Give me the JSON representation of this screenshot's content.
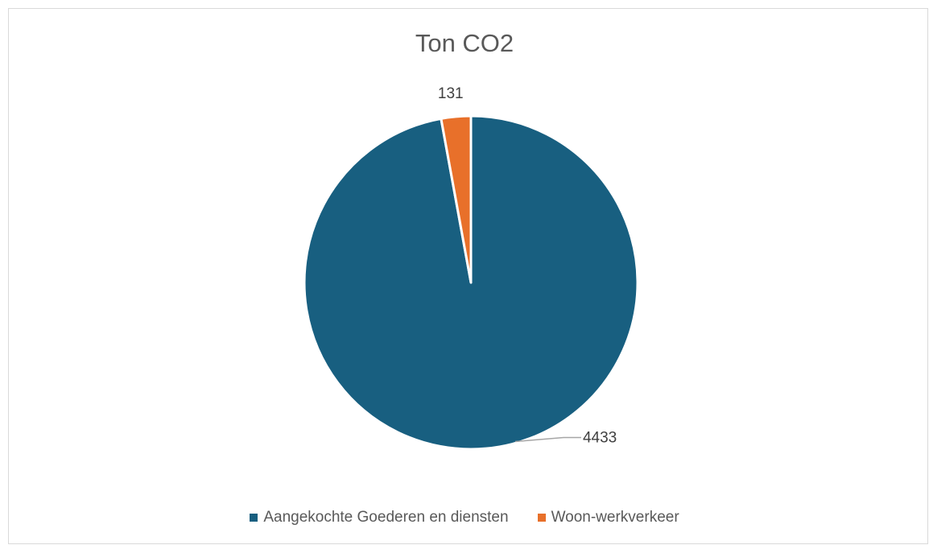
{
  "chart_data": {
    "type": "pie",
    "title": "Ton CO2",
    "categories": [
      "Aangekochte Goederen en diensten",
      "Woon-werkverkeer"
    ],
    "values": [
      4433,
      131
    ],
    "colors": [
      "#185f80",
      "#e8702a"
    ],
    "data_labels": [
      "4433",
      "131"
    ],
    "legend_position": "bottom"
  }
}
